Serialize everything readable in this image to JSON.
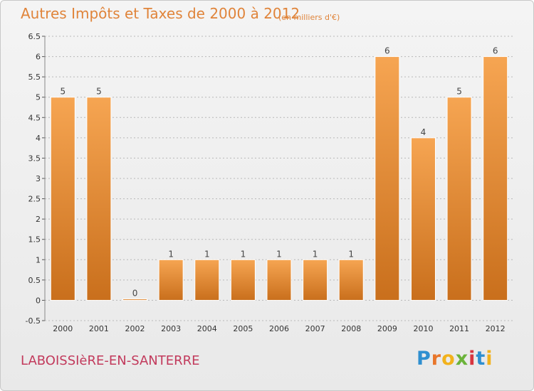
{
  "title": "Autres Impôts et Taxes de 2000 à 2012",
  "subtitle": "(en milliers d'€)",
  "commune": "LABOISSIèRE-EN-SANTERRE",
  "logo": {
    "letters": [
      "P",
      "r",
      "o",
      "x",
      "i",
      "t",
      "i"
    ],
    "colors": [
      "#2f8fd0",
      "#e8762b",
      "#f2b21c",
      "#6bb33a",
      "#d8353f",
      "#2f8fd0",
      "#f2b21c"
    ]
  },
  "colors": {
    "bar_top": "#f6a552",
    "bar_bottom": "#c96f1c",
    "grid": "#b8b8b8",
    "axis_text": "#333333"
  },
  "chart_data": {
    "type": "bar",
    "categories": [
      "2000",
      "2001",
      "2002",
      "2003",
      "2004",
      "2005",
      "2006",
      "2007",
      "2008",
      "2009",
      "2010",
      "2011",
      "2012"
    ],
    "values": [
      5,
      5,
      0,
      1,
      1,
      1,
      1,
      1,
      1,
      6,
      4,
      5,
      6
    ],
    "data_labels": [
      "5",
      "5",
      "0",
      "1",
      "1",
      "1",
      "1",
      "1",
      "1",
      "6",
      "4",
      "5",
      "6"
    ],
    "yticks": [
      "-0.5",
      "0",
      "0.5",
      "1",
      "1.5",
      "2",
      "2.5",
      "3",
      "3.5",
      "4",
      "4.5",
      "5",
      "5.5",
      "6",
      "6.5"
    ],
    "ylim": [
      -0.5,
      6.5
    ],
    "grid": true,
    "legend": "none"
  }
}
